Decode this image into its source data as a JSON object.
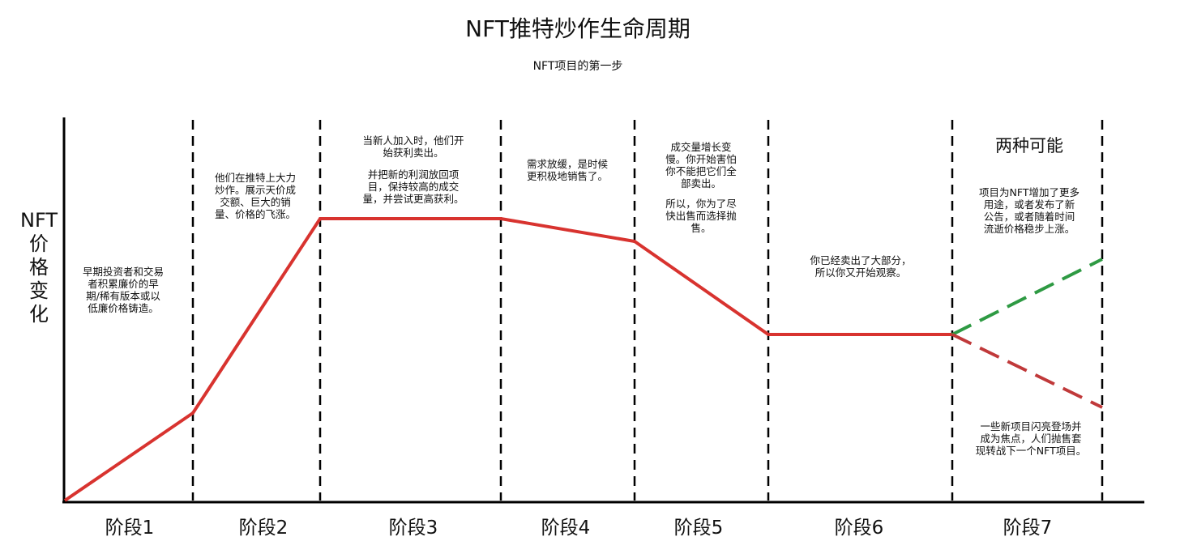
{
  "header": {
    "title": "NFT推特炒作生命周期",
    "subtitle": "NFT项目的第一步"
  },
  "y_axis_label": "NFT价格变化",
  "stages": [
    {
      "label": "阶段1",
      "notes": [
        [
          "早期投资者和交易",
          "者积累廉价的早",
          "期/稀有版本或以",
          "低廉价格铸造。"
        ]
      ]
    },
    {
      "label": "阶段2",
      "notes": [
        [
          "他们在推特上大力",
          "炒作。展示天价成",
          "交额、巨大的销",
          "量、价格的飞涨。"
        ]
      ]
    },
    {
      "label": "阶段3",
      "notes": [
        [
          "当新人加入时，他们开",
          "始获利卖出。"
        ],
        [
          "并把新的利润放回项",
          "目，保持较高的成交",
          "量，并尝试更高获利。"
        ]
      ]
    },
    {
      "label": "阶段4",
      "notes": [
        [
          "需求放缓，是时候",
          "更积极地销售了。"
        ]
      ]
    },
    {
      "label": "阶段5",
      "notes": [
        [
          "成交量增长变",
          "慢。你开始害怕",
          "你不能把它们全",
          "部卖出。"
        ],
        [
          "所以，你为了尽",
          "快出售而选择抛",
          "售。"
        ]
      ]
    },
    {
      "label": "阶段6",
      "notes": [
        [
          "你已经卖出了大部分，",
          "所以你又开始观察。"
        ]
      ]
    },
    {
      "label": "阶段7",
      "heading": "两种可能",
      "notes": [
        [
          "项目为NFT增加了更多",
          "用途，或者发布了新",
          "公告，或者随着时间",
          "流逝价格稳步上涨。"
        ],
        [
          "一些新项目闪亮登场并",
          "成为焦点，人们抛售套",
          "现转战下一个NFT项目。"
        ]
      ]
    }
  ]
}
